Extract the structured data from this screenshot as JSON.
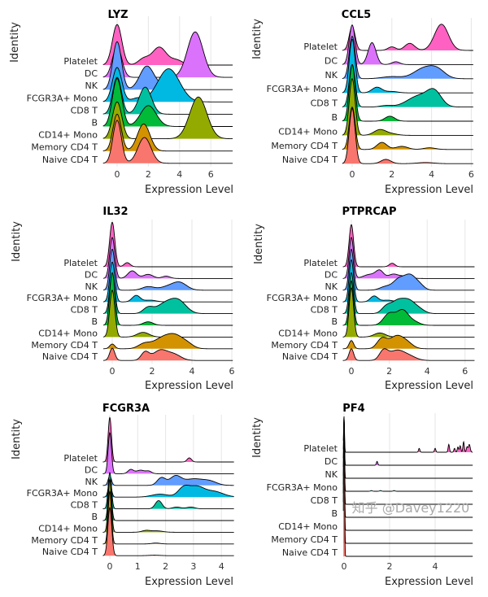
{
  "identities": [
    "Naive CD4 T",
    "Memory CD4 T",
    "CD14+ Mono",
    "B",
    "CD8 T",
    "FCGR3A+ Mono",
    "NK",
    "DC",
    "Platelet"
  ],
  "colors": {
    "Naive CD4 T": "#F8766D",
    "Memory CD4 T": "#D39200",
    "CD14+ Mono": "#93AA00",
    "B": "#00BA38",
    "CD8 T": "#00C19F",
    "FCGR3A+ Mono": "#00B9E3",
    "NK": "#619CFF",
    "DC": "#DB72FB",
    "Platelet": "#FF61C3"
  },
  "watermark": "知乎 @Davey1220",
  "chart_data": [
    {
      "type": "ridgeline",
      "title": "LYZ",
      "xlabel": "Expression Level",
      "ylabel": "Identity",
      "xlim": [
        -0.9,
        7.4
      ],
      "xticks": [
        0,
        2,
        4,
        6
      ],
      "grid": "vertical-major",
      "density_components_note_units": "[mean, sd, peak height in row spacings]",
      "rows": {
        "Platelet": [
          [
            0,
            0.3,
            3.3
          ],
          [
            1.7,
            0.35,
            0.5
          ],
          [
            2.7,
            0.45,
            1.45
          ],
          [
            3.8,
            0.4,
            0.4
          ]
        ],
        "DC": [
          [
            0,
            0.3,
            2.5
          ],
          [
            5.0,
            0.5,
            3.7
          ]
        ],
        "NK": [
          [
            0,
            0.28,
            3.9
          ],
          [
            1.9,
            0.45,
            1.9
          ],
          [
            3.0,
            0.5,
            0.3
          ]
        ],
        "FCGR3A+ Mono": [
          [
            0,
            0.3,
            2.8
          ],
          [
            1.3,
            0.4,
            0.3
          ],
          [
            3.3,
            0.7,
            2.7
          ]
        ],
        "CD8 T": [
          [
            0,
            0.28,
            3.0
          ],
          [
            1.8,
            0.4,
            2.2
          ]
        ],
        "B": [
          [
            0,
            0.3,
            3.9
          ],
          [
            2.0,
            0.5,
            1.7
          ]
        ],
        "CD14+ Mono": [
          [
            0,
            0.3,
            3.0
          ],
          [
            5.2,
            0.55,
            3.4
          ]
        ],
        "Memory CD4 T": [
          [
            0,
            0.27,
            3.0
          ],
          [
            1.7,
            0.4,
            2.2
          ]
        ],
        "Naive CD4 T": [
          [
            0,
            0.27,
            3.5
          ],
          [
            1.75,
            0.42,
            2.1
          ]
        ]
      }
    },
    {
      "type": "ridgeline",
      "title": "CCL5",
      "xlabel": "Expression Level",
      "ylabel": "Identity",
      "xlim": [
        -0.5,
        6.1
      ],
      "xticks": [
        0,
        2,
        4,
        6
      ],
      "grid": "vertical-major",
      "rows": {
        "Platelet": [
          [
            0,
            0.15,
            1.7
          ],
          [
            2.0,
            0.2,
            0.25
          ],
          [
            2.9,
            0.25,
            0.5
          ],
          [
            4.5,
            0.35,
            1.85
          ]
        ],
        "DC": [
          [
            0,
            0.15,
            2.8
          ],
          [
            1.0,
            0.2,
            1.55
          ],
          [
            2.2,
            0.2,
            0.2
          ]
        ],
        "NK": [
          [
            0,
            0.15,
            3.0
          ],
          [
            2.0,
            0.5,
            0.15
          ],
          [
            3.6,
            0.5,
            0.7
          ],
          [
            4.3,
            0.4,
            0.55
          ]
        ],
        "FCGR3A+ Mono": [
          [
            0,
            0.15,
            3.8
          ],
          [
            1.25,
            0.25,
            0.4
          ],
          [
            2.0,
            0.3,
            0.1
          ]
        ],
        "CD8 T": [
          [
            0,
            0.15,
            3.0
          ],
          [
            1.7,
            0.3,
            0.1
          ],
          [
            3.4,
            0.6,
            0.8
          ],
          [
            4.15,
            0.35,
            0.9
          ]
        ],
        "B": [
          [
            0,
            0.15,
            4.0
          ],
          [
            1.9,
            0.25,
            0.35
          ]
        ],
        "CD14+ Mono": [
          [
            0,
            0.15,
            4.0
          ],
          [
            1.4,
            0.3,
            0.4
          ],
          [
            2.0,
            0.3,
            0.1
          ]
        ],
        "Memory CD4 T": [
          [
            0,
            0.15,
            3.0
          ],
          [
            1.5,
            0.25,
            0.5
          ],
          [
            2.5,
            0.3,
            0.22
          ],
          [
            3.9,
            0.3,
            0.12
          ]
        ],
        "Naive CD4 T": [
          [
            0,
            0.15,
            3.9
          ],
          [
            1.7,
            0.25,
            0.3
          ],
          [
            3.7,
            0.4,
            0.08
          ]
        ]
      }
    },
    {
      "type": "ridgeline",
      "title": "IL32",
      "xlabel": "Expression Level",
      "ylabel": "Identity",
      "xlim": [
        -0.45,
        6.05
      ],
      "xticks": [
        0,
        2,
        4,
        6
      ],
      "grid": "vertical-major",
      "rows": {
        "Platelet": [
          [
            0,
            0.13,
            3.8
          ],
          [
            0.75,
            0.15,
            0.35
          ]
        ],
        "DC": [
          [
            0,
            0.13,
            3.5
          ],
          [
            1.0,
            0.22,
            0.65
          ],
          [
            1.8,
            0.25,
            0.35
          ],
          [
            2.7,
            0.2,
            0.2
          ]
        ],
        "NK": [
          [
            0,
            0.13,
            3.5
          ],
          [
            1.8,
            0.3,
            0.3
          ],
          [
            2.8,
            0.4,
            0.3
          ],
          [
            3.4,
            0.35,
            0.6
          ]
        ],
        "FCGR3A+ Mono": [
          [
            0,
            0.13,
            3.4
          ],
          [
            1.2,
            0.2,
            0.55
          ],
          [
            1.9,
            0.3,
            0.15
          ]
        ],
        "CD8 T": [
          [
            0,
            0.13,
            3.4
          ],
          [
            1.8,
            0.25,
            0.5
          ],
          [
            2.6,
            0.4,
            0.75
          ],
          [
            3.3,
            0.4,
            1.1
          ]
        ],
        "B": [
          [
            0,
            0.13,
            4.5
          ],
          [
            1.8,
            0.25,
            0.3
          ]
        ],
        "CD14+ Mono": [
          [
            0,
            0.13,
            4.0
          ],
          [
            1.55,
            0.3,
            0.4
          ]
        ],
        "Memory CD4 T": [
          [
            0,
            0.13,
            0.4
          ],
          [
            1.6,
            0.3,
            0.4
          ],
          [
            2.5,
            0.45,
            0.85
          ],
          [
            3.2,
            0.4,
            0.95
          ],
          [
            3.8,
            0.3,
            0.3
          ]
        ],
        "Naive CD4 T": [
          [
            0,
            0.13,
            1.05
          ],
          [
            1.65,
            0.2,
            0.7
          ],
          [
            2.4,
            0.35,
            0.85
          ],
          [
            3.1,
            0.35,
            0.5
          ]
        ]
      }
    },
    {
      "type": "ridgeline",
      "title": "PTPRCAP",
      "xlabel": "Expression Level",
      "ylabel": "Identity",
      "xlim": [
        -0.45,
        6.5
      ],
      "xticks": [
        0,
        2,
        4,
        6
      ],
      "grid": "vertical-major",
      "rows": {
        "Platelet": [
          [
            0,
            0.12,
            3.6
          ],
          [
            2.15,
            0.15,
            0.3
          ]
        ],
        "DC": [
          [
            0,
            0.12,
            3.5
          ],
          [
            1.0,
            0.35,
            0.35
          ],
          [
            1.5,
            0.2,
            0.6
          ],
          [
            2.2,
            0.25,
            0.35
          ],
          [
            2.8,
            0.3,
            0.2
          ]
        ],
        "NK": [
          [
            0,
            0.12,
            3.5
          ],
          [
            1.8,
            0.3,
            0.3
          ],
          [
            2.5,
            0.3,
            0.9
          ],
          [
            3.1,
            0.3,
            1.2
          ],
          [
            3.6,
            0.25,
            0.4
          ]
        ],
        "FCGR3A+ Mono": [
          [
            0,
            0.12,
            3.6
          ],
          [
            1.2,
            0.2,
            0.5
          ],
          [
            1.9,
            0.3,
            0.15
          ]
        ],
        "CD8 T": [
          [
            0,
            0.12,
            3.5
          ],
          [
            1.85,
            0.25,
            0.6
          ],
          [
            2.4,
            0.3,
            0.9
          ],
          [
            3.0,
            0.35,
            1.1
          ],
          [
            3.6,
            0.3,
            0.3
          ]
        ],
        "B": [
          [
            0,
            0.12,
            3.8
          ],
          [
            2.0,
            0.3,
            1.0
          ],
          [
            2.7,
            0.3,
            1.25
          ],
          [
            3.3,
            0.3,
            0.3
          ]
        ],
        "CD14+ Mono": [
          [
            0,
            0.12,
            4.2
          ],
          [
            1.5,
            0.3,
            0.35
          ]
        ],
        "Memory CD4 T": [
          [
            0,
            0.12,
            0.7
          ],
          [
            1.6,
            0.25,
            0.8
          ],
          [
            2.4,
            0.4,
            1.1
          ],
          [
            3.0,
            0.3,
            0.3
          ]
        ],
        "Naive CD4 T": [
          [
            0,
            0.12,
            1.0
          ],
          [
            1.7,
            0.22,
            0.8
          ],
          [
            2.4,
            0.4,
            0.85
          ],
          [
            3.1,
            0.35,
            0.3
          ]
        ]
      }
    },
    {
      "type": "ridgeline",
      "title": "FCGR3A",
      "xlabel": "Expression Level",
      "ylabel": "Identity",
      "xlim": [
        -0.25,
        4.45
      ],
      "xticks": [
        0,
        1,
        2,
        3,
        4
      ],
      "grid": "vertical-major",
      "rows": {
        "Platelet": [
          [
            0,
            0.06,
            3.8
          ],
          [
            2.85,
            0.08,
            0.35
          ]
        ],
        "DC": [
          [
            0,
            0.06,
            3.5
          ],
          [
            0.75,
            0.1,
            0.35
          ],
          [
            1.1,
            0.15,
            0.3
          ],
          [
            1.4,
            0.1,
            0.2
          ]
        ],
        "NK": [
          [
            0,
            0.06,
            0.8
          ],
          [
            1.85,
            0.15,
            0.65
          ],
          [
            2.35,
            0.2,
            0.75
          ],
          [
            3.0,
            0.35,
            0.55
          ],
          [
            3.6,
            0.25,
            0.3
          ]
        ],
        "FCGR3A+ Mono": [
          [
            0,
            0.06,
            1.2
          ],
          [
            1.8,
            0.3,
            0.25
          ],
          [
            2.65,
            0.2,
            0.8
          ],
          [
            3.1,
            0.25,
            0.8
          ],
          [
            3.7,
            0.35,
            0.5
          ]
        ],
        "CD8 T": [
          [
            0,
            0.06,
            3.1
          ],
          [
            1.75,
            0.12,
            0.7
          ],
          [
            2.4,
            0.15,
            0.15
          ],
          [
            2.9,
            0.15,
            0.15
          ]
        ],
        "B": [
          [
            0,
            0.06,
            3.5
          ]
        ],
        "CD14+ Mono": [
          [
            0,
            0.06,
            4.5
          ],
          [
            1.3,
            0.15,
            0.15
          ],
          [
            1.7,
            0.2,
            0.12
          ]
        ],
        "Memory CD4 T": [
          [
            0,
            0.06,
            4.5
          ],
          [
            1.65,
            0.15,
            0.08
          ]
        ],
        "Naive CD4 T": [
          [
            0,
            0.07,
            4.1
          ],
          [
            1.6,
            0.2,
            0.04
          ]
        ]
      }
    },
    {
      "type": "ridgeline",
      "title": "PF4",
      "xlabel": "Expression Level",
      "ylabel": "Identity",
      "xlim": [
        -0.03,
        5.65
      ],
      "xticks": [
        0,
        2,
        4
      ],
      "grid": "vertical-major",
      "rows": {
        "Platelet": [
          [
            0,
            0.02,
            2.75
          ],
          [
            3.3,
            0.03,
            0.3
          ],
          [
            4.0,
            0.03,
            0.3
          ],
          [
            4.6,
            0.03,
            0.6
          ],
          [
            4.85,
            0.03,
            0.3
          ],
          [
            5.0,
            0.03,
            0.4
          ],
          [
            5.1,
            0.03,
            0.5
          ],
          [
            5.25,
            0.03,
            0.8
          ],
          [
            5.4,
            0.03,
            0.4
          ],
          [
            5.5,
            0.04,
            0.6
          ]
        ],
        "DC": [
          [
            0,
            0.02,
            3.75
          ],
          [
            1.45,
            0.03,
            0.3
          ]
        ],
        "NK": [
          [
            0,
            0.02,
            4.75
          ]
        ],
        "FCGR3A+ Mono": [
          [
            0,
            0.02,
            5.75
          ],
          [
            1.2,
            0.04,
            0.05
          ],
          [
            1.6,
            0.04,
            0.05
          ],
          [
            2.2,
            0.04,
            0.05
          ]
        ],
        "CD8 T": [
          [
            0,
            0.02,
            6.75
          ]
        ],
        "B": [
          [
            0,
            0.02,
            7.75
          ]
        ],
        "CD14+ Mono": [
          [
            0,
            0.02,
            8.75
          ]
        ],
        "Memory CD4 T": [
          [
            0,
            0.02,
            9.75
          ]
        ],
        "Naive CD4 T": [
          [
            0,
            0.02,
            10.75
          ]
        ]
      }
    }
  ]
}
